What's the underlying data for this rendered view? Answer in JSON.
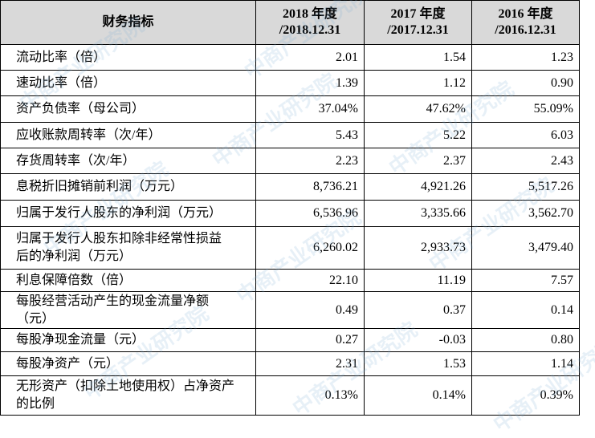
{
  "table": {
    "header": [
      {
        "title": "财务指标"
      },
      {
        "year": "2018 年度",
        "date": "/2018.12.31"
      },
      {
        "year": "2017 年度",
        "date": "/2017.12.31"
      },
      {
        "year": "2016 年度",
        "date": "/2016.12.31"
      }
    ],
    "rows": [
      {
        "label": [
          "流动比率（倍）"
        ],
        "values": [
          "2.01",
          "1.54",
          "1.23"
        ]
      },
      {
        "label": [
          "速动比率（倍）"
        ],
        "values": [
          "1.39",
          "1.12",
          "0.90"
        ]
      },
      {
        "label": [
          "资产负债率（母公司）"
        ],
        "values": [
          "37.04%",
          "47.62%",
          "55.09%"
        ]
      },
      {
        "label": [
          "应收账款周转率（次/年）"
        ],
        "values": [
          "5.43",
          "5.22",
          "6.03"
        ]
      },
      {
        "label": [
          "存货周转率（次/年）"
        ],
        "values": [
          "2.23",
          "2.37",
          "2.43"
        ]
      },
      {
        "label": [
          "息税折旧摊销前利润（万元）"
        ],
        "values": [
          "8,736.21",
          "4,921.26",
          "5,517.26"
        ]
      },
      {
        "label": [
          "归属于发行人股东的净利润（万元）"
        ],
        "values": [
          "6,536.96",
          "3,335.66",
          "3,562.70"
        ]
      },
      {
        "label": [
          "归属于发行人股东扣除非经常性损益",
          "后的净利润（万元）"
        ],
        "values": [
          "6,260.02",
          "2,933.73",
          "3,479.40"
        ]
      },
      {
        "label": [
          "利息保障倍数（倍）"
        ],
        "values": [
          "22.10",
          "11.19",
          "7.57"
        ]
      },
      {
        "label": [
          "每股经营活动产生的现金流量净额",
          "（元）"
        ],
        "values": [
          "0.49",
          "0.37",
          "0.14"
        ]
      },
      {
        "label": [
          "每股净现金流量（元）"
        ],
        "values": [
          "0.27",
          "-0.03",
          "0.80"
        ]
      },
      {
        "label": [
          "每股净资产（元）"
        ],
        "values": [
          "2.31",
          "1.53",
          "1.14"
        ]
      },
      {
        "label": [
          "无形资产（扣除土地使用权）占净资产",
          "的比例"
        ],
        "values": [
          "0.13%",
          "0.14%",
          "0.39%"
        ]
      }
    ]
  },
  "watermark": "中商产业研究院"
}
